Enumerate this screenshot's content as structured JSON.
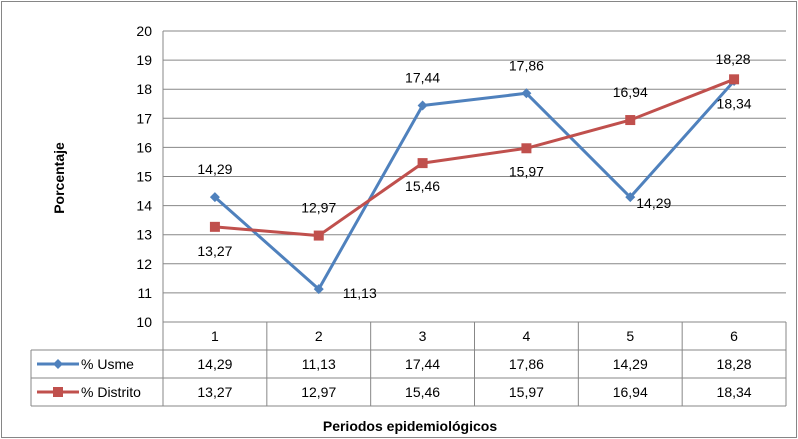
{
  "chart_data": {
    "type": "line",
    "title": "",
    "xlabel": "Periodos epidemiológicos",
    "ylabel": "Porcentaje",
    "ylim": [
      10,
      20
    ],
    "yticks": [
      "10",
      "11",
      "12",
      "13",
      "14",
      "15",
      "16",
      "17",
      "18",
      "19",
      "20"
    ],
    "categories": [
      "1",
      "2",
      "3",
      "4",
      "5",
      "6"
    ],
    "grid": true,
    "legend": "data-table",
    "series": [
      {
        "name": "% Usme",
        "color": "#4F81BD",
        "marker": "diamond",
        "values": [
          14.29,
          11.13,
          17.44,
          17.86,
          14.29,
          18.28
        ],
        "labels": [
          "14,29",
          "11,13",
          "17,44",
          "17,86",
          "14,29",
          "18,28"
        ]
      },
      {
        "name": "% Distrito",
        "color": "#C0504D",
        "marker": "square",
        "values": [
          13.27,
          12.97,
          15.46,
          15.97,
          16.94,
          18.34
        ],
        "labels": [
          "13,27",
          "12,97",
          "15,46",
          "15,97",
          "16,94",
          "18,34"
        ]
      }
    ]
  }
}
